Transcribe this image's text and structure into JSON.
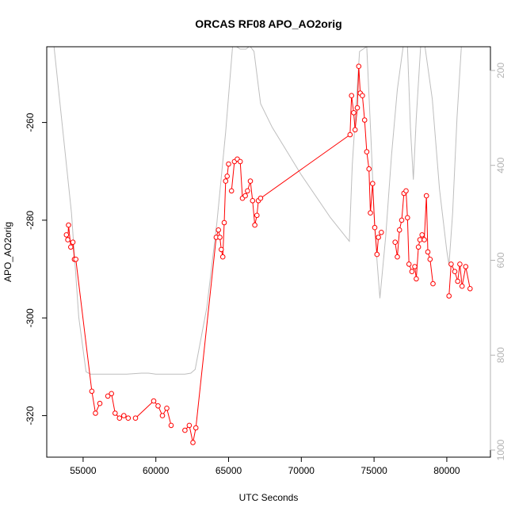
{
  "chart_data": {
    "type": "line",
    "title": "ORCAS RF08 APO_AO2orig",
    "xlabel": "UTC Seconds",
    "ylabel": "APO_AO2orig",
    "xlim": [
      52500,
      83000
    ],
    "ylim": [
      -328.5,
      -244.5
    ],
    "y2lim": [
      1015,
      150
    ],
    "x_ticks": [
      55000,
      60000,
      65000,
      70000,
      75000,
      80000
    ],
    "y_ticks": [
      -320,
      -300,
      -280,
      -260
    ],
    "y2_ticks": [
      200,
      400,
      600,
      800,
      1000
    ],
    "grid": false,
    "colors": {
      "apo": "#ff0000",
      "secondary": "#bebebe"
    },
    "series": [
      {
        "role": "apo-points",
        "x": [
          53850,
          53950,
          54000,
          54150,
          54300,
          54400,
          54500,
          55600,
          55850,
          56150,
          56700,
          56950,
          57200,
          57500,
          57800,
          58100,
          58600,
          59850,
          60150,
          60450,
          60750,
          61050,
          62000,
          62300,
          62550,
          62750,
          64150,
          64300,
          64400,
          64500,
          64600,
          64700,
          64800,
          64900,
          65000,
          65200,
          65400,
          65600,
          65800,
          65950,
          66150,
          66300,
          66500,
          66650,
          66800,
          66950,
          67050,
          67200,
          73350,
          73450,
          73600,
          73700,
          73850,
          73950,
          74050,
          74200,
          74350,
          74500,
          74650,
          74750,
          74900,
          75050,
          75200,
          75300,
          75500,
          76450,
          76600,
          76750,
          76900,
          77050,
          77200,
          77300,
          77400,
          77600,
          77800,
          77900,
          78050,
          78150,
          78300,
          78450,
          78600,
          78700,
          78850,
          79050,
          80150,
          80300,
          80550,
          80750,
          80900,
          81050,
          81300,
          81600
        ],
        "y": [
          -283.0,
          -284.0,
          -281.0,
          -285.5,
          -284.5,
          -288.0,
          -288.0,
          -315.0,
          -319.5,
          -317.5,
          -316.0,
          -315.5,
          -319.5,
          -320.5,
          -320.0,
          -320.5,
          -320.5,
          -317.0,
          -318.0,
          -320.0,
          -318.5,
          -322.0,
          -323.0,
          -322.0,
          -325.5,
          -322.5,
          -283.5,
          -282.0,
          -283.5,
          -286.0,
          -287.5,
          -280.5,
          -272.0,
          -271.0,
          -268.5,
          -274.0,
          -268.0,
          -267.5,
          -268.0,
          -275.5,
          -275.0,
          -274.0,
          -272.0,
          -276.0,
          -281.0,
          -279.0,
          -276.0,
          -275.5,
          -262.5,
          -254.5,
          -258.0,
          -261.5,
          -257.0,
          -248.5,
          -254.0,
          -254.5,
          -259.5,
          -266.0,
          -269.5,
          -278.5,
          -272.5,
          -281.5,
          -287.0,
          -283.5,
          -282.5,
          -284.5,
          -287.5,
          -282.0,
          -280.0,
          -274.5,
          -274.0,
          -279.5,
          -289.0,
          -290.5,
          -289.5,
          -292.0,
          -285.5,
          -284.0,
          -283.0,
          -284.0,
          -275.0,
          -286.5,
          -288.0,
          -293.0,
          -295.5,
          -289.0,
          -290.5,
          -292.5,
          -289.0,
          -293.5,
          -289.5,
          -294.0
        ]
      },
      {
        "role": "apo-line-segments",
        "segments": [
          {
            "x": [
              53850,
              53950,
              54000,
              54150,
              54300,
              54400,
              54500,
              55600,
              55850,
              56150
            ],
            "y": [
              -283.0,
              -284.0,
              -281.0,
              -285.5,
              -284.5,
              -288.0,
              -288.0,
              -315.0,
              -319.5,
              -317.5
            ]
          },
          {
            "x": [
              56700,
              56950,
              57200,
              57500,
              57800,
              58100
            ],
            "y": [
              -316.0,
              -315.5,
              -319.5,
              -320.5,
              -320.0,
              -320.5
            ]
          },
          {
            "x": [
              58600,
              59850,
              60150,
              60450,
              60750,
              61050
            ],
            "y": [
              -320.5,
              -317.0,
              -318.0,
              -320.0,
              -318.5,
              -322.0
            ]
          },
          {
            "x": [
              62000,
              62300,
              62550,
              62750,
              64150,
              64300,
              64400,
              64500,
              64600,
              64700,
              64800,
              64900,
              65000
            ],
            "y": [
              -323.0,
              -322.0,
              -325.5,
              -322.5,
              -283.5,
              -282.0,
              -283.5,
              -286.0,
              -287.5,
              -280.5,
              -272.0,
              -271.0,
              -268.5
            ]
          },
          {
            "x": [
              65200,
              65400,
              65600,
              65800,
              65950,
              66150,
              66300,
              66500,
              66650,
              66800,
              66950,
              67050,
              67200,
              73350,
              73450,
              73600,
              73700,
              73850,
              73950,
              74050,
              74200,
              74350,
              74500,
              74650,
              74750,
              74900,
              75050,
              75200,
              75300,
              75500
            ],
            "y": [
              -274.0,
              -268.0,
              -267.5,
              -268.0,
              -275.5,
              -275.0,
              -274.0,
              -272.0,
              -276.0,
              -281.0,
              -279.0,
              -276.0,
              -275.5,
              -262.5,
              -254.5,
              -258.0,
              -261.5,
              -257.0,
              -248.5,
              -254.0,
              -254.5,
              -259.5,
              -266.0,
              -269.5,
              -278.5,
              -272.5,
              -281.5,
              -287.0,
              -283.5,
              -282.5
            ]
          },
          {
            "x": [
              76450,
              76600,
              76750,
              76900,
              77050,
              77200,
              77300,
              77400,
              77600,
              77800,
              77900,
              78050,
              78150,
              78300,
              78450,
              78600,
              78700,
              78850,
              79050
            ],
            "y": [
              -284.5,
              -287.5,
              -282.0,
              -280.0,
              -274.5,
              -274.0,
              -279.5,
              -289.0,
              -290.5,
              -289.5,
              -292.0,
              -285.5,
              -284.0,
              -283.0,
              -284.0,
              -275.0,
              -286.5,
              -288.0,
              -293.0
            ]
          },
          {
            "x": [
              80150,
              80300,
              80550,
              80750,
              80900,
              81050,
              81300,
              81600
            ],
            "y": [
              -295.5,
              -289.0,
              -290.5,
              -292.5,
              -289.0,
              -293.5,
              -289.5,
              -294.0
            ]
          }
        ]
      },
      {
        "role": "secondary-line",
        "x": [
          53000,
          54200,
          54700,
          55200,
          55500,
          56000,
          57000,
          58000,
          59000,
          59500,
          60000,
          61000,
          62000,
          62400,
          62700,
          63500,
          64200,
          64800,
          65300,
          65550,
          65800,
          66000,
          66200,
          66400,
          66500,
          66750,
          67200,
          68000,
          70000,
          72000,
          73300,
          73500,
          74000,
          74500,
          74800,
          75000,
          75200,
          75400,
          75800,
          76200,
          76600,
          77000,
          77300,
          77500,
          77700,
          77900,
          78200,
          78500,
          79000,
          79500,
          80000,
          80150,
          80400,
          80700,
          81000,
          81500,
          82000
        ],
        "y2": [
          150,
          500,
          720,
          835,
          840,
          840,
          840,
          840,
          838,
          838,
          840,
          840,
          840,
          838,
          830,
          700,
          520,
          330,
          140,
          150,
          155,
          155,
          155,
          150,
          150,
          160,
          270,
          320,
          420,
          510,
          560,
          400,
          160,
          150,
          350,
          500,
          600,
          680,
          550,
          380,
          240,
          150,
          150,
          320,
          430,
          300,
          150,
          150,
          260,
          450,
          580,
          610,
          500,
          300,
          150,
          150,
          150
        ]
      }
    ]
  }
}
